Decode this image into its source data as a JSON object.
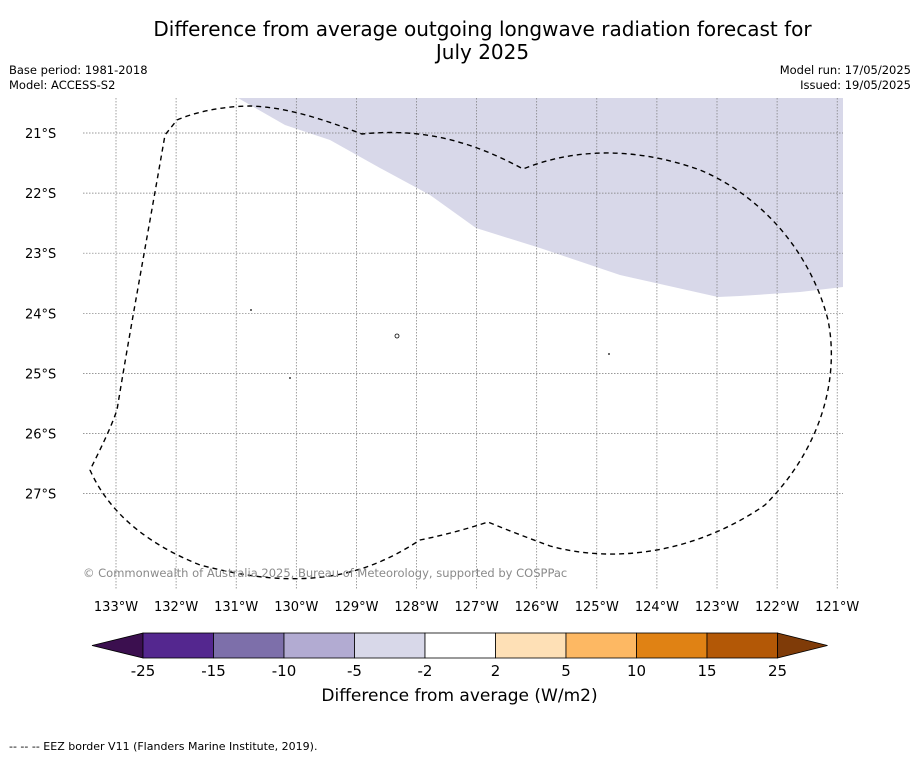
{
  "title": "Difference from average outgoing longwave radiation forecast for July 2025",
  "title_line1": "Difference from average outgoing longwave radiation forecast for",
  "title_line2": "July 2025",
  "meta": {
    "base_period": "Base period: 1981-2018",
    "model": "Model: ACCESS-S2",
    "model_run": "Model run: 17/05/2025",
    "issued": "Issued: 19/05/2025"
  },
  "map": {
    "lat_labels": [
      "21°S",
      "22°S",
      "23°S",
      "24°S",
      "25°S",
      "26°S",
      "27°S"
    ],
    "lon_labels": [
      "133°W",
      "132°W",
      "131°W",
      "130°W",
      "129°W",
      "128°W",
      "127°W",
      "126°W",
      "125°W",
      "124°W",
      "123°W",
      "122°W",
      "121°W"
    ],
    "anomaly_region_class": "-5 to -2",
    "anomaly_region_color": "#d8d8e9",
    "border_style": "dashed"
  },
  "copyright": "© Commonwealth of Australia 2025, Bureau of Meteorology, supported by COSPPac",
  "colorbar": {
    "title": "Difference from average (W/m2)",
    "ticks": [
      "-25",
      "-15",
      "-10",
      "-5",
      "-2",
      "2",
      "5",
      "10",
      "15",
      "25"
    ],
    "colors": [
      "#3b0f4f",
      "#54278f",
      "#7d6faa",
      "#b2abd2",
      "#d8d8e9",
      "#ffffff",
      "#fee0b6",
      "#fdb863",
      "#e08214",
      "#b35806",
      "#7f3b08"
    ]
  },
  "footnote": "-- -- -- EEZ border V11 (Flanders Marine Institute, 2019)."
}
